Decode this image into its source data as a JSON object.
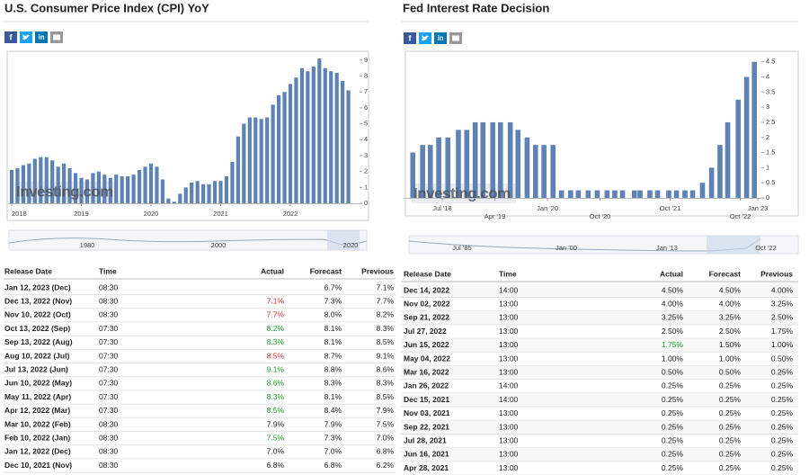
{
  "chart_data": [
    {
      "type": "bar",
      "title": "U.S. Consumer Price Index (CPI) YoY",
      "watermark": "Investing.com",
      "color": "#5e82b3",
      "x": [
        2018.0,
        2018.083,
        2018.167,
        2018.25,
        2018.333,
        2018.417,
        2018.5,
        2018.583,
        2018.667,
        2018.75,
        2018.833,
        2018.917,
        2019.0,
        2019.083,
        2019.167,
        2019.25,
        2019.333,
        2019.417,
        2019.5,
        2019.583,
        2019.667,
        2019.75,
        2019.833,
        2019.917,
        2020.0,
        2020.083,
        2020.167,
        2020.25,
        2020.333,
        2020.417,
        2020.5,
        2020.583,
        2020.667,
        2020.75,
        2020.833,
        2020.917,
        2021.0,
        2021.083,
        2021.167,
        2021.25,
        2021.333,
        2021.417,
        2021.5,
        2021.583,
        2021.667,
        2021.75,
        2021.833,
        2021.917,
        2022.0,
        2022.083,
        2022.167,
        2022.25,
        2022.333,
        2022.417,
        2022.5,
        2022.583,
        2022.667,
        2022.75,
        2022.833
      ],
      "values": [
        2.1,
        2.2,
        2.4,
        2.5,
        2.8,
        2.9,
        2.9,
        2.7,
        2.3,
        2.5,
        2.2,
        1.9,
        1.6,
        1.5,
        1.9,
        2.0,
        1.8,
        1.6,
        1.8,
        1.7,
        1.7,
        1.8,
        2.1,
        2.3,
        2.5,
        2.3,
        1.5,
        0.3,
        0.1,
        0.6,
        1.0,
        1.3,
        1.4,
        1.2,
        1.2,
        1.4,
        1.4,
        1.7,
        2.6,
        4.2,
        5.0,
        5.4,
        5.4,
        5.3,
        5.4,
        6.2,
        6.8,
        7.0,
        7.5,
        7.9,
        8.5,
        8.3,
        8.6,
        9.1,
        8.5,
        8.3,
        8.2,
        7.7,
        7.1
      ],
      "xlim": [
        2018,
        2023
      ],
      "xticks": [
        2018,
        2019,
        2020,
        2021,
        2022
      ],
      "ylim": [
        0,
        9.5
      ],
      "yticks": [
        0,
        1,
        2,
        3,
        4,
        5,
        6,
        7,
        8,
        9
      ],
      "grid": false
    },
    {
      "type": "bar",
      "title": "Fed Interest Rate Decision",
      "watermark": "Investing.com",
      "color": "#5e82b3",
      "x": [
        2018.08,
        2018.22,
        2018.33,
        2018.45,
        2018.58,
        2018.73,
        2018.85,
        2018.97,
        2019.08,
        2019.22,
        2019.33,
        2019.47,
        2019.58,
        2019.71,
        2019.83,
        2019.95,
        2020.08,
        2020.2,
        2020.33,
        2020.44,
        2020.58,
        2020.71,
        2020.85,
        2020.96,
        2021.07,
        2021.24,
        2021.32,
        2021.46,
        2021.57,
        2021.73,
        2021.84,
        2021.96,
        2022.07,
        2022.21,
        2022.34,
        2022.46,
        2022.57,
        2022.72,
        2022.84,
        2022.95
      ],
      "values": [
        1.5,
        1.75,
        1.75,
        2.0,
        2.0,
        2.25,
        2.25,
        2.5,
        2.5,
        2.5,
        2.5,
        2.5,
        2.25,
        2.0,
        1.75,
        1.75,
        1.75,
        0.25,
        0.25,
        0.25,
        0.25,
        0.25,
        0.25,
        0.25,
        0.25,
        0.25,
        0.25,
        0.25,
        0.25,
        0.25,
        0.25,
        0.25,
        0.25,
        0.5,
        1.0,
        1.75,
        2.5,
        3.25,
        4.0,
        4.5
      ],
      "xlim": [
        2018.0,
        2023.05
      ],
      "xticks": [
        {
          "value": 2018.5,
          "label": "Jul '18"
        },
        {
          "value": 2019.25,
          "label": "Apr '19"
        },
        {
          "value": 2020.0,
          "label": "Jan '20"
        },
        {
          "value": 2020.75,
          "label": "Oct '20"
        },
        {
          "value": 2021.75,
          "label": "Oct '21"
        },
        {
          "value": 2022.75,
          "label": "Oct '22"
        },
        {
          "value": 2023.0,
          "label": "Jan 23"
        }
      ],
      "ylim": [
        0,
        4.7
      ],
      "yticks": [
        0,
        0.5,
        1,
        1.5,
        2,
        2.5,
        3,
        3.5,
        4,
        4.5
      ],
      "grid": false
    }
  ],
  "share": [
    "f",
    "in"
  ],
  "navigators": [
    {
      "labels": [
        "1980",
        "2000",
        "2020"
      ]
    },
    {
      "labels": [
        "Jul '85",
        "Jan '00",
        "Jan '13",
        "Oct '22"
      ]
    }
  ],
  "tables": [
    {
      "headers": [
        "Release Date",
        "Time",
        "Actual",
        "Forecast",
        "Previous"
      ],
      "rows": [
        [
          "Jan 12, 2023 (Dec)",
          "08:30",
          null,
          "6.7%",
          "7.1%"
        ],
        [
          "Dec 13, 2022 (Nov)",
          "08:30",
          "7.1%",
          "7.3%",
          "7.7%"
        ],
        [
          "Nov 10, 2022 (Oct)",
          "08:30",
          "7.7%",
          "8.0%",
          "8.2%"
        ],
        [
          "Oct 13, 2022 (Sep)",
          "07:30",
          "8.2%",
          "8.1%",
          "8.3%"
        ],
        [
          "Sep 13, 2022 (Aug)",
          "07:30",
          "8.3%",
          "8.1%",
          "8.5%"
        ],
        [
          "Aug 10, 2022 (Jul)",
          "07:30",
          "8.5%",
          "8.7%",
          "9.1%"
        ],
        [
          "Jul 13, 2022 (Jun)",
          "07:30",
          "9.1%",
          "8.8%",
          "8.6%"
        ],
        [
          "Jun 10, 2022 (May)",
          "07:30",
          "8.6%",
          "8.3%",
          "8.3%"
        ],
        [
          "May 11, 2022 (Apr)",
          "07:30",
          "8.3%",
          "8.1%",
          "8.5%"
        ],
        [
          "Apr 12, 2022 (Mar)",
          "07:30",
          "8.5%",
          "8.4%",
          "7.9%"
        ],
        [
          "Mar 10, 2022 (Feb)",
          "08:30",
          "7.9%",
          "7.9%",
          "7.5%"
        ],
        [
          "Feb 10, 2022 (Jan)",
          "08:30",
          "7.5%",
          "7.3%",
          "7.0%"
        ],
        [
          "Jan 12, 2022 (Dec)",
          "08:30",
          "7.0%",
          "7.0%",
          "6.8%"
        ],
        [
          "Dec 10, 2021 (Nov)",
          "08:30",
          "6.8%",
          "6.8%",
          "6.2%"
        ]
      ],
      "actual_colors": [
        "#222222",
        "#e0302c",
        "#e0302c",
        "#1aa52a",
        "#1aa52a",
        "#e0302c",
        "#1aa52a",
        "#1aa52a",
        "#1aa52a",
        "#1aa52a",
        "#222222",
        "#1aa52a",
        "#222222",
        "#222222"
      ]
    },
    {
      "headers": [
        "Release Date",
        "Time",
        "Actual",
        "Forecast",
        "Previous"
      ],
      "rows": [
        [
          "Dec 14, 2022",
          "14:00",
          "4.50%",
          "4.50%",
          "4.00%"
        ],
        [
          "Nov 02, 2022",
          "13:00",
          "4.00%",
          "4.00%",
          "3.25%"
        ],
        [
          "Sep 21, 2022",
          "13:00",
          "3.25%",
          "3.25%",
          "2.50%"
        ],
        [
          "Jul 27, 2022",
          "13:00",
          "2.50%",
          "2.50%",
          "1.75%"
        ],
        [
          "Jun 15, 2022",
          "13:00",
          "1.75%",
          "1.50%",
          "1.00%"
        ],
        [
          "May 04, 2022",
          "13:00",
          "1.00%",
          "1.00%",
          "0.50%"
        ],
        [
          "Mar 16, 2022",
          "13:00",
          "0.50%",
          "0.50%",
          "0.25%"
        ],
        [
          "Jan 26, 2022",
          "14:00",
          "0.25%",
          "0.25%",
          "0.25%"
        ],
        [
          "Dec 15, 2021",
          "14:00",
          "0.25%",
          "0.25%",
          "0.25%"
        ],
        [
          "Nov 03, 2021",
          "13:00",
          "0.25%",
          "0.25%",
          "0.25%"
        ],
        [
          "Sep 22, 2021",
          "13:00",
          "0.25%",
          "0.25%",
          "0.25%"
        ],
        [
          "Jul 28, 2021",
          "13:00",
          "0.25%",
          "0.25%",
          "0.25%"
        ],
        [
          "Jun 16, 2021",
          "13:00",
          "0.25%",
          "0.25%",
          "0.25%"
        ],
        [
          "Apr 28, 2021",
          "13:00",
          "0.25%",
          "0.25%",
          "0.25%"
        ]
      ],
      "actual_colors": [
        "#222222",
        "#222222",
        "#222222",
        "#222222",
        "#1aa52a",
        "#222222",
        "#222222",
        "#222222",
        "#222222",
        "#222222",
        "#222222",
        "#222222",
        "#222222",
        "#222222"
      ]
    }
  ]
}
